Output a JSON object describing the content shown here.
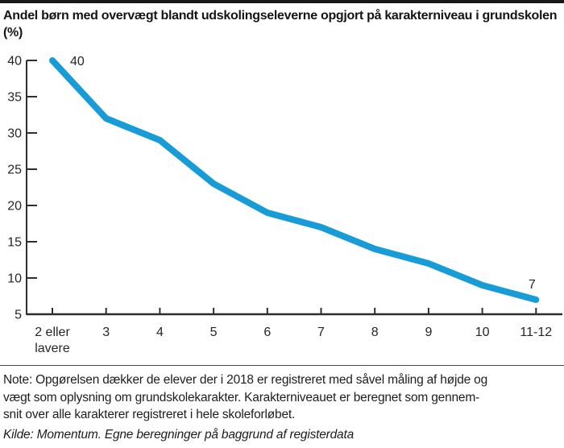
{
  "header": {
    "title": "Andel børn med overvægt blandt udskolingseleverne opgjort på karakterniveau i grundskolen (%)"
  },
  "chart_data": {
    "type": "line",
    "categories": [
      "2 eller lavere",
      "3",
      "4",
      "5",
      "6",
      "7",
      "8",
      "9",
      "10",
      "11-12"
    ],
    "values": [
      40,
      32,
      29,
      23,
      19,
      17,
      14,
      12,
      9,
      7
    ],
    "title": "Andel børn med overvægt blandt udskolingseleverne opgjort på karakterniveau i grundskolen (%)",
    "xlabel": "",
    "ylabel": "",
    "ylim": [
      5,
      40
    ],
    "ytick_step": 5,
    "grid": false,
    "legend_position": "none",
    "line_color": "#189cd8",
    "axis_color": "#2e2e2e",
    "label_color": "#262626",
    "first_point_label": "40",
    "last_point_label": "7"
  },
  "footer": {
    "note_lines": [
      "Note: Opgørelsen dækker de elever der i 2018 er registreret med såvel måling af højde og",
      "vægt som oplysning om grundskolekarakter. Karakterniveauet er beregnet som gennem-",
      "snit over alle karakterer registreret i hele skoleforløbet."
    ],
    "source": "Kilde: Momentum. Egne beregninger på baggrund af registerdata"
  }
}
